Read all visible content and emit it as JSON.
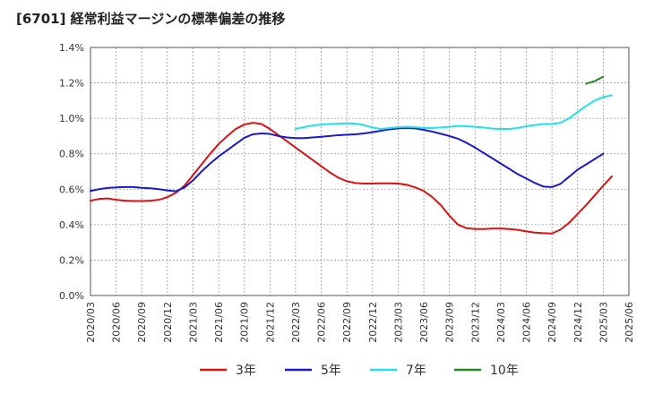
{
  "chart_data": {
    "type": "line",
    "title": "[6701]  経常利益マージンの標準偏差の推移",
    "xlabel": "",
    "ylabel": "",
    "ylim": [
      0,
      1.4
    ],
    "y_ticks": [
      0,
      0.2,
      0.4,
      0.6,
      0.8,
      1.0,
      1.2,
      1.4
    ],
    "y_tick_labels": [
      "0.0%",
      "0.2%",
      "0.4%",
      "0.6%",
      "0.8%",
      "1.0%",
      "1.2%",
      "1.4%"
    ],
    "x_tick_labels": [
      "2020/03",
      "2020/06",
      "2020/09",
      "2020/12",
      "2021/03",
      "2021/06",
      "2021/09",
      "2021/12",
      "2022/03",
      "2022/06",
      "2022/09",
      "2022/12",
      "2023/03",
      "2023/06",
      "2023/09",
      "2023/12",
      "2024/03",
      "2024/06",
      "2024/09",
      "2024/12",
      "2025/03",
      "2025/06"
    ],
    "grid": true,
    "legend_position": "bottom",
    "series": [
      {
        "name": "3年",
        "color": "#dd1111",
        "points": [
          [
            "2020/03",
            0.535
          ],
          [
            "2020/04",
            0.545
          ],
          [
            "2020/05",
            0.548
          ],
          [
            "2020/06",
            0.54
          ],
          [
            "2020/07",
            0.535
          ],
          [
            "2020/08",
            0.533
          ],
          [
            "2020/09",
            0.533
          ],
          [
            "2020/10",
            0.535
          ],
          [
            "2020/11",
            0.54
          ],
          [
            "2020/12",
            0.555
          ],
          [
            "2021/01",
            0.58
          ],
          [
            "2021/02",
            0.62
          ],
          [
            "2021/03",
            0.68
          ],
          [
            "2021/04",
            0.74
          ],
          [
            "2021/05",
            0.8
          ],
          [
            "2021/06",
            0.855
          ],
          [
            "2021/07",
            0.9
          ],
          [
            "2021/08",
            0.94
          ],
          [
            "2021/09",
            0.965
          ],
          [
            "2021/10",
            0.975
          ],
          [
            "2021/11",
            0.968
          ],
          [
            "2021/12",
            0.94
          ],
          [
            "2022/01",
            0.905
          ],
          [
            "2022/02",
            0.87
          ],
          [
            "2022/03",
            0.835
          ],
          [
            "2022/04",
            0.8
          ],
          [
            "2022/05",
            0.765
          ],
          [
            "2022/06",
            0.73
          ],
          [
            "2022/07",
            0.695
          ],
          [
            "2022/08",
            0.665
          ],
          [
            "2022/09",
            0.645
          ],
          [
            "2022/10",
            0.635
          ],
          [
            "2022/11",
            0.632
          ],
          [
            "2022/12",
            0.632
          ],
          [
            "2023/01",
            0.633
          ],
          [
            "2023/02",
            0.633
          ],
          [
            "2023/03",
            0.632
          ],
          [
            "2023/04",
            0.625
          ],
          [
            "2023/05",
            0.61
          ],
          [
            "2023/06",
            0.59
          ],
          [
            "2023/07",
            0.555
          ],
          [
            "2023/08",
            0.51
          ],
          [
            "2023/09",
            0.45
          ],
          [
            "2023/10",
            0.4
          ],
          [
            "2023/11",
            0.38
          ],
          [
            "2023/12",
            0.375
          ],
          [
            "2024/01",
            0.375
          ],
          [
            "2024/02",
            0.378
          ],
          [
            "2024/03",
            0.378
          ],
          [
            "2024/04",
            0.375
          ],
          [
            "2024/05",
            0.37
          ],
          [
            "2024/06",
            0.362
          ],
          [
            "2024/07",
            0.355
          ],
          [
            "2024/08",
            0.352
          ],
          [
            "2024/09",
            0.35
          ],
          [
            "2024/10",
            0.372
          ],
          [
            "2024/11",
            0.41
          ],
          [
            "2024/12",
            0.46
          ],
          [
            "2025/01",
            0.51
          ],
          [
            "2025/02",
            0.565
          ],
          [
            "2025/03",
            0.62
          ],
          [
            "2025/04",
            0.672
          ]
        ]
      },
      {
        "name": "5年",
        "color": "#1a1acc",
        "points": [
          [
            "2020/03",
            0.59
          ],
          [
            "2020/04",
            0.6
          ],
          [
            "2020/05",
            0.607
          ],
          [
            "2020/06",
            0.61
          ],
          [
            "2020/07",
            0.612
          ],
          [
            "2020/08",
            0.612
          ],
          [
            "2020/09",
            0.608
          ],
          [
            "2020/10",
            0.605
          ],
          [
            "2020/11",
            0.6
          ],
          [
            "2020/12",
            0.593
          ],
          [
            "2021/01",
            0.588
          ],
          [
            "2021/02",
            0.61
          ],
          [
            "2021/03",
            0.65
          ],
          [
            "2021/04",
            0.7
          ],
          [
            "2021/05",
            0.745
          ],
          [
            "2021/06",
            0.785
          ],
          [
            "2021/07",
            0.82
          ],
          [
            "2021/08",
            0.855
          ],
          [
            "2021/09",
            0.89
          ],
          [
            "2021/10",
            0.91
          ],
          [
            "2021/11",
            0.915
          ],
          [
            "2021/12",
            0.912
          ],
          [
            "2022/01",
            0.9
          ],
          [
            "2022/02",
            0.892
          ],
          [
            "2022/03",
            0.888
          ],
          [
            "2022/04",
            0.888
          ],
          [
            "2022/05",
            0.892
          ],
          [
            "2022/06",
            0.896
          ],
          [
            "2022/07",
            0.9
          ],
          [
            "2022/08",
            0.905
          ],
          [
            "2022/09",
            0.907
          ],
          [
            "2022/10",
            0.91
          ],
          [
            "2022/11",
            0.915
          ],
          [
            "2022/12",
            0.922
          ],
          [
            "2023/01",
            0.93
          ],
          [
            "2023/02",
            0.938
          ],
          [
            "2023/03",
            0.943
          ],
          [
            "2023/04",
            0.945
          ],
          [
            "2023/05",
            0.943
          ],
          [
            "2023/06",
            0.935
          ],
          [
            "2023/07",
            0.925
          ],
          [
            "2023/08",
            0.913
          ],
          [
            "2023/09",
            0.9
          ],
          [
            "2023/10",
            0.885
          ],
          [
            "2023/11",
            0.862
          ],
          [
            "2023/12",
            0.835
          ],
          [
            "2024/01",
            0.805
          ],
          [
            "2024/02",
            0.775
          ],
          [
            "2024/03",
            0.745
          ],
          [
            "2024/04",
            0.715
          ],
          [
            "2024/05",
            0.685
          ],
          [
            "2024/06",
            0.66
          ],
          [
            "2024/07",
            0.635
          ],
          [
            "2024/08",
            0.615
          ],
          [
            "2024/09",
            0.612
          ],
          [
            "2024/10",
            0.63
          ],
          [
            "2024/11",
            0.67
          ],
          [
            "2024/12",
            0.71
          ],
          [
            "2025/01",
            0.74
          ],
          [
            "2025/02",
            0.77
          ],
          [
            "2025/03",
            0.8
          ]
        ]
      },
      {
        "name": "7年",
        "color": "#22e0ee",
        "points": [
          [
            "2022/03",
            0.94
          ],
          [
            "2022/04",
            0.95
          ],
          [
            "2022/05",
            0.96
          ],
          [
            "2022/06",
            0.965
          ],
          [
            "2022/07",
            0.968
          ],
          [
            "2022/08",
            0.97
          ],
          [
            "2022/09",
            0.972
          ],
          [
            "2022/10",
            0.97
          ],
          [
            "2022/11",
            0.962
          ],
          [
            "2022/12",
            0.948
          ],
          [
            "2023/01",
            0.94
          ],
          [
            "2023/02",
            0.945
          ],
          [
            "2023/03",
            0.95
          ],
          [
            "2023/04",
            0.952
          ],
          [
            "2023/05",
            0.95
          ],
          [
            "2023/06",
            0.945
          ],
          [
            "2023/07",
            0.945
          ],
          [
            "2023/08",
            0.948
          ],
          [
            "2023/09",
            0.952
          ],
          [
            "2023/10",
            0.957
          ],
          [
            "2023/11",
            0.955
          ],
          [
            "2023/12",
            0.952
          ],
          [
            "2024/01",
            0.948
          ],
          [
            "2024/02",
            0.942
          ],
          [
            "2024/03",
            0.94
          ],
          [
            "2024/04",
            0.94
          ],
          [
            "2024/05",
            0.945
          ],
          [
            "2024/06",
            0.955
          ],
          [
            "2024/07",
            0.962
          ],
          [
            "2024/08",
            0.968
          ],
          [
            "2024/09",
            0.968
          ],
          [
            "2024/10",
            0.975
          ],
          [
            "2024/11",
            1.0
          ],
          [
            "2024/12",
            1.035
          ],
          [
            "2025/01",
            1.07
          ],
          [
            "2025/02",
            1.1
          ],
          [
            "2025/03",
            1.12
          ],
          [
            "2025/04",
            1.13
          ]
        ]
      },
      {
        "name": "10年",
        "color": "#228822",
        "points": [
          [
            "2025/01",
            1.195
          ],
          [
            "2025/02",
            1.21
          ],
          [
            "2025/03",
            1.235
          ]
        ]
      }
    ]
  }
}
